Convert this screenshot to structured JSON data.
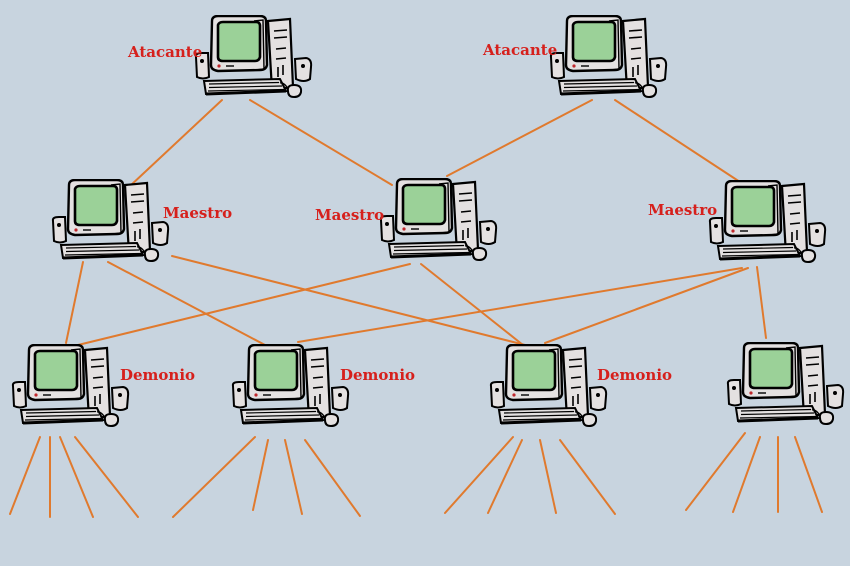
{
  "colors": {
    "background": "#c8d4df",
    "link": "#e07a2e",
    "label": "#d6201c",
    "screen": "#9bd198",
    "case": "#e4e1e1"
  },
  "icon": "desktop-computer-icon",
  "nodes": {
    "attacker_1": {
      "label": "Atacante",
      "role": "attacker"
    },
    "attacker_2": {
      "label": "Atacante",
      "role": "attacker"
    },
    "master_1": {
      "label": "Maestro",
      "role": "master"
    },
    "master_2": {
      "label": "Maestro",
      "role": "master"
    },
    "master_3": {
      "label": "Maestro",
      "role": "master"
    },
    "daemon_1": {
      "label": "Demonio",
      "role": "daemon"
    },
    "daemon_2": {
      "label": "Demonio",
      "role": "daemon"
    },
    "daemon_3": {
      "label": "Demonio",
      "role": "daemon"
    },
    "daemon_4": {
      "label": "",
      "role": "daemon"
    }
  },
  "edges": [
    [
      "attacker_1",
      "master_1"
    ],
    [
      "attacker_1",
      "master_2"
    ],
    [
      "attacker_2",
      "master_2"
    ],
    [
      "attacker_2",
      "master_3"
    ],
    [
      "master_1",
      "daemon_1"
    ],
    [
      "master_1",
      "daemon_2"
    ],
    [
      "master_1",
      "daemon_3"
    ],
    [
      "master_2",
      "daemon_1"
    ],
    [
      "master_2",
      "daemon_3"
    ],
    [
      "master_3",
      "daemon_2"
    ],
    [
      "master_3",
      "daemon_3"
    ],
    [
      "master_3",
      "daemon_4"
    ]
  ]
}
